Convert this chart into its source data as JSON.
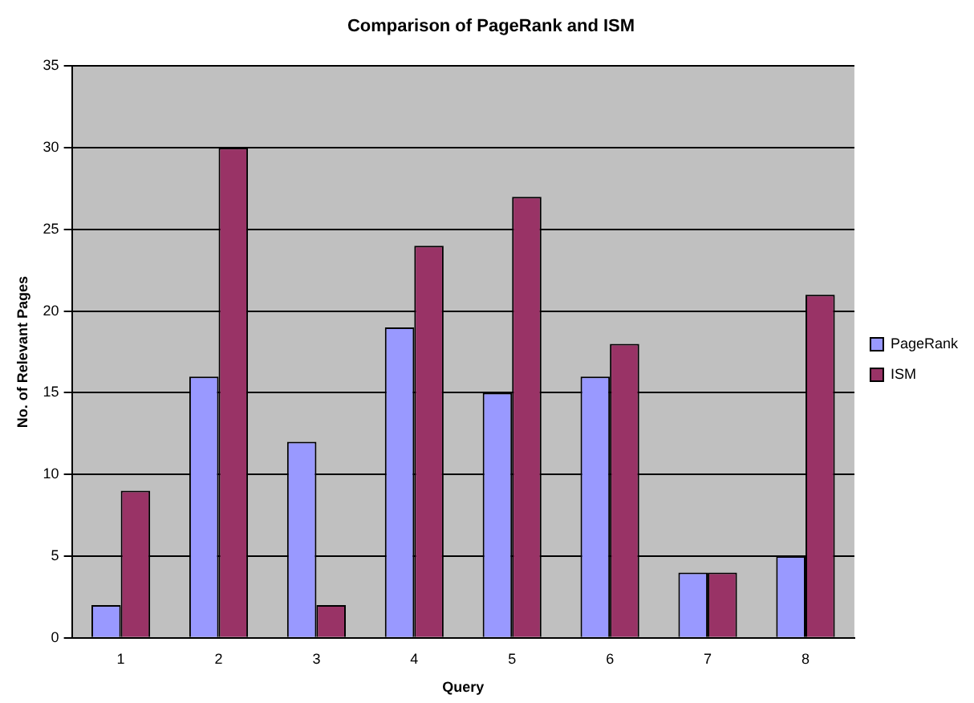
{
  "chart_data": {
    "type": "bar",
    "title": "Comparison of PageRank and ISM",
    "xlabel": "Query",
    "ylabel": "No. of Relevant Pages",
    "categories": [
      "1",
      "2",
      "3",
      "4",
      "5",
      "6",
      "7",
      "8"
    ],
    "series": [
      {
        "name": "PageRank",
        "color": "#9999ff",
        "values": [
          2,
          16,
          12,
          19,
          15,
          16,
          4,
          5
        ]
      },
      {
        "name": "ISM",
        "color": "#993366",
        "values": [
          9,
          30,
          2,
          24,
          27,
          18,
          4,
          21
        ]
      }
    ],
    "ylim": [
      0,
      35
    ],
    "yticks": [
      0,
      5,
      10,
      15,
      20,
      25,
      30,
      35
    ],
    "grid": "y",
    "legend": "right"
  }
}
